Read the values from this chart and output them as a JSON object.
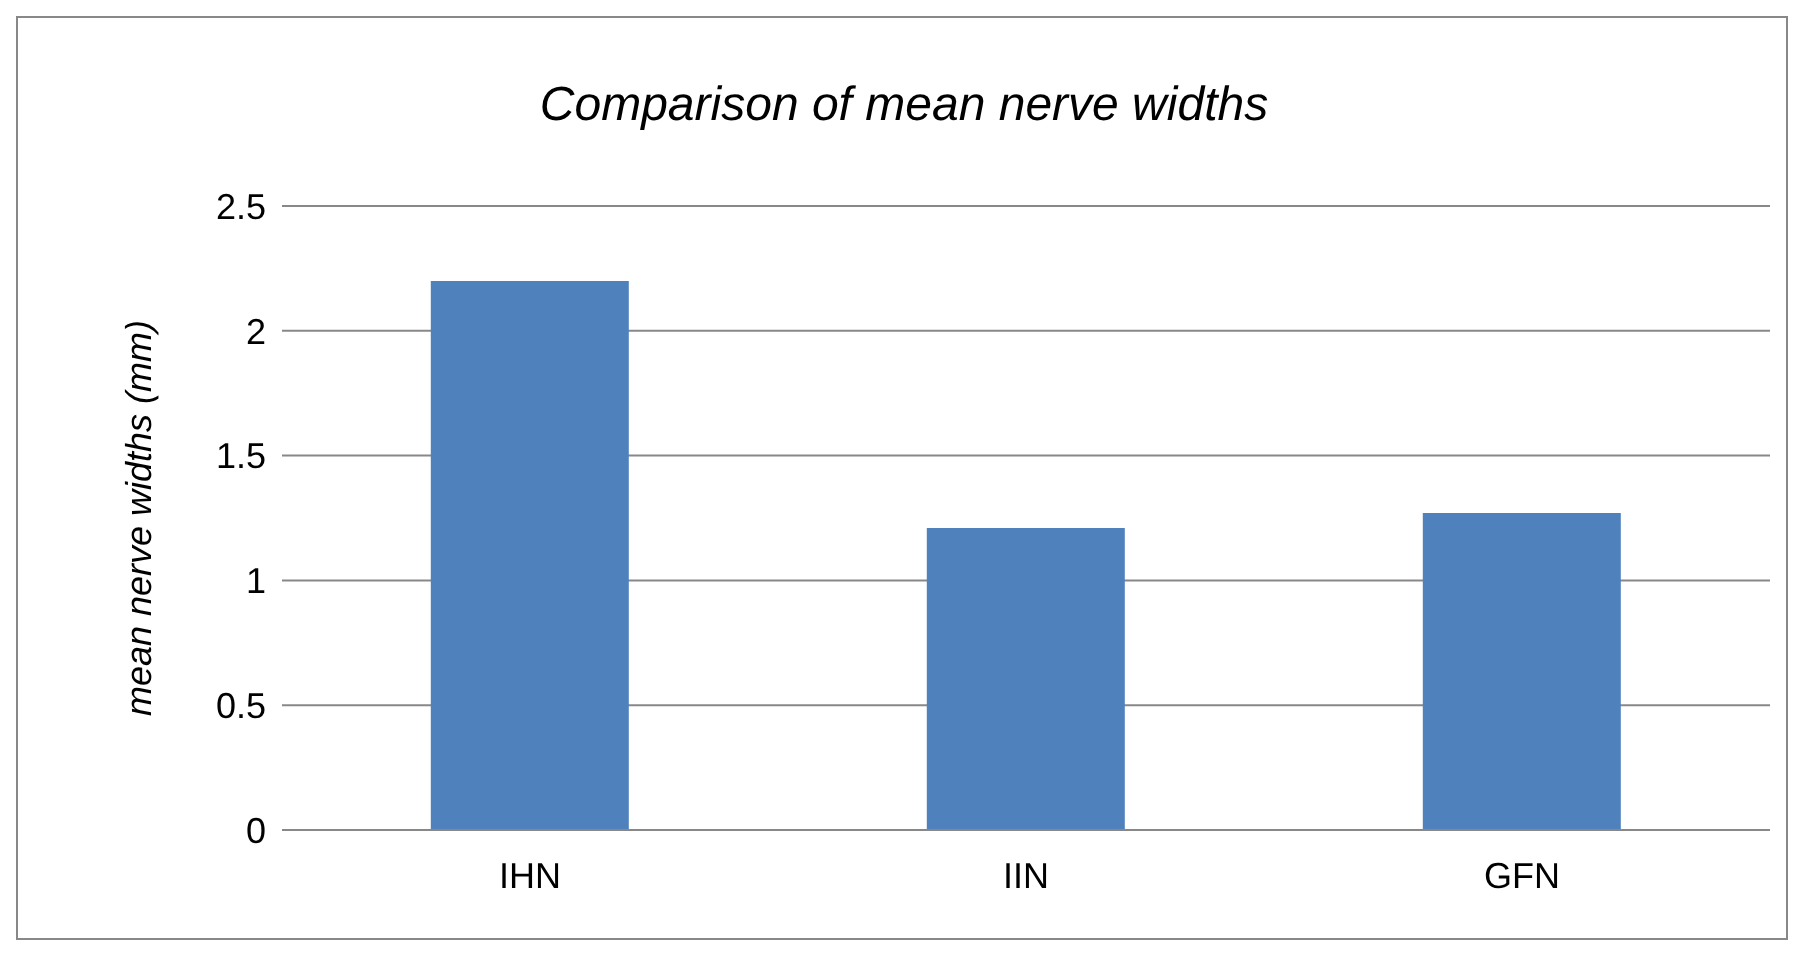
{
  "chart_data": {
    "type": "bar",
    "title": "Comparison of mean nerve widths",
    "ylabel": "mean nerve widths (mm)",
    "categories": [
      "IHN",
      "IIN",
      "GFN"
    ],
    "values": [
      2.2,
      1.21,
      1.27
    ],
    "color": "#4f81bd",
    "ylim": [
      0,
      2.5
    ],
    "yticks": [
      0,
      0.5,
      1,
      1.5,
      2,
      2.5
    ],
    "grid": "y"
  }
}
